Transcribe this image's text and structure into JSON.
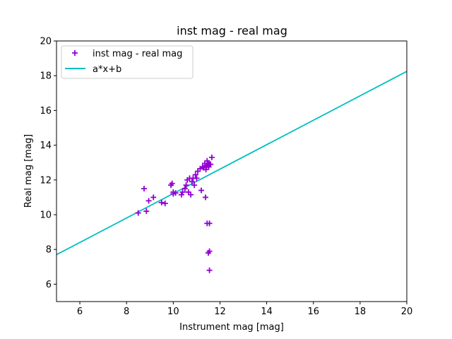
{
  "chart_data": {
    "type": "scatter",
    "title": "inst mag - real mag",
    "xlabel": "Instrument mag [mag]",
    "ylabel": "Real mag [mag]",
    "xlim": [
      5,
      20
    ],
    "ylim": [
      5,
      20
    ],
    "xticks": [
      6,
      8,
      10,
      12,
      14,
      16,
      18,
      20
    ],
    "yticks": [
      6,
      8,
      10,
      12,
      14,
      16,
      18,
      20
    ],
    "grid": false,
    "legend_position": "top-left",
    "series": [
      {
        "name": "inst mag - real mag",
        "kind": "scatter",
        "marker": "plus",
        "color": "#9400d3",
        "points": [
          [
            8.5,
            10.1
          ],
          [
            8.75,
            11.5
          ],
          [
            8.85,
            10.2
          ],
          [
            8.95,
            10.8
          ],
          [
            9.15,
            11.0
          ],
          [
            9.5,
            10.7
          ],
          [
            9.65,
            10.65
          ],
          [
            9.9,
            11.7
          ],
          [
            9.95,
            11.8
          ],
          [
            10.0,
            11.3
          ],
          [
            10.0,
            11.2
          ],
          [
            10.1,
            11.25
          ],
          [
            10.35,
            11.15
          ],
          [
            10.4,
            11.3
          ],
          [
            10.5,
            11.5
          ],
          [
            10.55,
            11.7
          ],
          [
            10.6,
            12.0
          ],
          [
            10.65,
            11.3
          ],
          [
            10.7,
            12.1
          ],
          [
            10.75,
            11.15
          ],
          [
            10.8,
            11.9
          ],
          [
            10.85,
            12.1
          ],
          [
            10.9,
            11.7
          ],
          [
            10.95,
            12.3
          ],
          [
            11.0,
            12.1
          ],
          [
            11.05,
            12.5
          ],
          [
            11.15,
            12.65
          ],
          [
            11.2,
            11.4
          ],
          [
            11.25,
            12.75
          ],
          [
            11.3,
            12.7
          ],
          [
            11.35,
            12.95
          ],
          [
            11.38,
            11.0
          ],
          [
            11.4,
            12.6
          ],
          [
            11.42,
            12.8
          ],
          [
            11.45,
            13.1
          ],
          [
            11.48,
            12.85
          ],
          [
            11.5,
            12.95
          ],
          [
            11.52,
            12.75
          ],
          [
            11.55,
            12.9
          ],
          [
            11.6,
            12.9
          ],
          [
            11.65,
            13.3
          ],
          [
            11.45,
            9.5
          ],
          [
            11.55,
            9.5
          ],
          [
            11.5,
            7.8
          ],
          [
            11.55,
            7.9
          ],
          [
            11.55,
            6.8
          ]
        ]
      },
      {
        "name": "a*x+b",
        "kind": "line",
        "color": "#00bfbf",
        "points": [
          [
            5,
            7.7
          ],
          [
            20,
            18.25
          ]
        ]
      }
    ]
  }
}
